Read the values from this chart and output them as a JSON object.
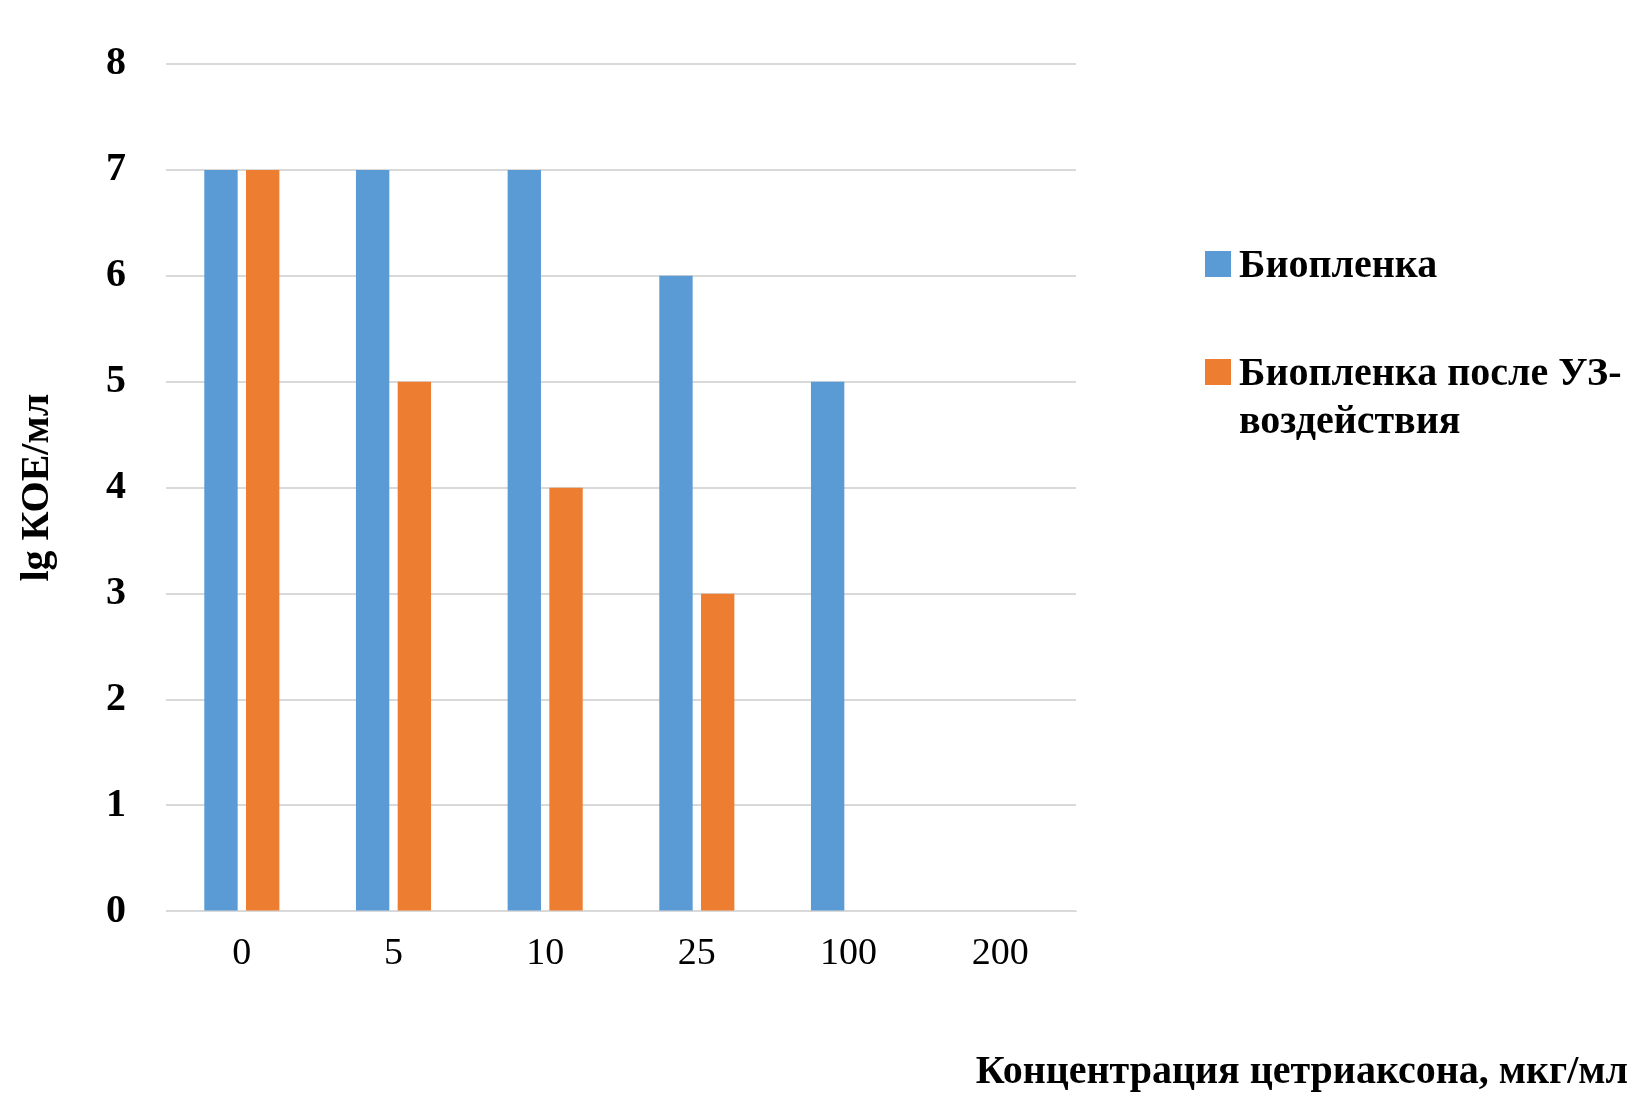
{
  "chart_data": {
    "type": "bar",
    "xlabel": "Концентрация цетриаксона, мкг/мл",
    "ylabel": "lg КОЕ/мл",
    "categories": [
      "0",
      "5",
      "10",
      "25",
      "100",
      "200"
    ],
    "series": [
      {
        "name": "Биопленка",
        "color": "#5b9bd5",
        "values": [
          7,
          7,
          7,
          6,
          5,
          0
        ]
      },
      {
        "name": "Биопленка после УЗ-воздействия",
        "color": "#ed7d31",
        "values": [
          7,
          5,
          4,
          3,
          0,
          0
        ]
      }
    ],
    "ylim": [
      0,
      8
    ],
    "yticks": [
      0,
      1,
      2,
      3,
      4,
      5,
      6,
      7,
      8
    ],
    "grid": "y",
    "legend": "right"
  }
}
